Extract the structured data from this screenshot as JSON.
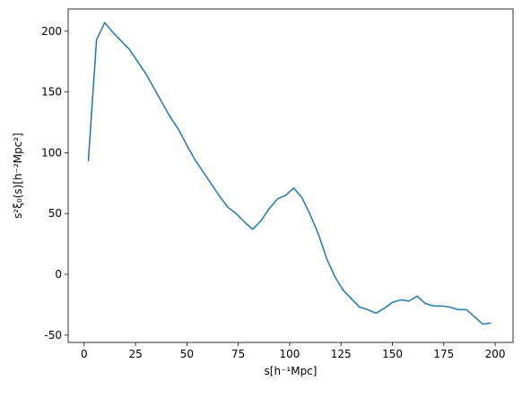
{
  "chart_data": {
    "type": "line",
    "xlabel": "s[h⁻¹Mpc]",
    "ylabel": "s²ξ₀(s)[h⁻²Mpc²]",
    "x": [
      2,
      6,
      10,
      14,
      18,
      22,
      26,
      30,
      34,
      38,
      42,
      46,
      50,
      54,
      58,
      62,
      66,
      70,
      74,
      78,
      82,
      86,
      90,
      94,
      98,
      102,
      106,
      110,
      114,
      118,
      122,
      126,
      130,
      134,
      138,
      142,
      146,
      150,
      154,
      158,
      162,
      166,
      170,
      174,
      178,
      182,
      186,
      190,
      194,
      198
    ],
    "series": [
      {
        "color": "#1f77b4",
        "values": [
          93,
          193,
          207,
          199,
          192,
          185,
          175,
          165,
          153,
          141,
          129,
          119,
          106,
          94,
          84,
          74,
          64,
          55,
          50,
          43,
          37,
          44,
          54,
          62,
          65,
          71,
          63,
          49,
          33,
          13,
          -2,
          -13,
          -20,
          -27,
          -29,
          -32,
          -28,
          -23,
          -21,
          -22,
          -18,
          -24,
          -26,
          -26,
          -27,
          -29,
          -29,
          -35,
          -41,
          -40
        ]
      }
    ],
    "xlim": [
      -7.8,
      208.7
    ],
    "ylim": [
      -56,
      218.3
    ],
    "xticks": [
      0,
      25,
      50,
      75,
      100,
      125,
      150,
      175,
      200
    ],
    "yticks": [
      -50,
      0,
      50,
      100,
      150,
      200
    ]
  }
}
